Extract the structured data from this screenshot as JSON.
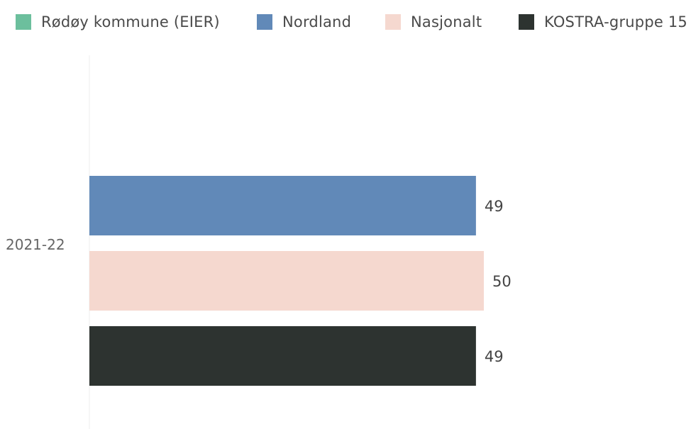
{
  "chart_data": {
    "type": "bar",
    "orientation": "horizontal",
    "title": "",
    "xlabel": "",
    "ylabel": "",
    "categories": [
      "2021-22"
    ],
    "xlim": [
      0,
      50
    ],
    "grid": false,
    "legend_position": "top",
    "series": [
      {
        "name": "Rødøy kommune (EIER)",
        "color": "#6cbf9d",
        "values": [
          null
        ],
        "labels": [
          ""
        ]
      },
      {
        "name": "Nordland",
        "color": "#6189b8",
        "values": [
          49
        ],
        "labels": [
          "49"
        ]
      },
      {
        "name": "Nasjonalt",
        "color": "#f5d8cf",
        "values": [
          50
        ],
        "labels": [
          "50"
        ]
      },
      {
        "name": "KOSTRA-gruppe 15",
        "color": "#2d3330",
        "values": [
          49
        ],
        "labels": [
          "49"
        ]
      }
    ]
  }
}
